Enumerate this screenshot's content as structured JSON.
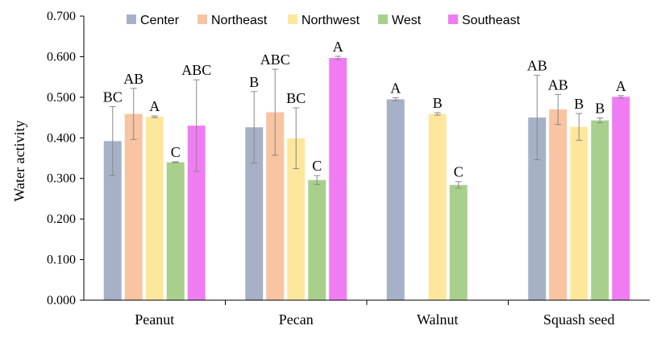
{
  "chart_data": {
    "type": "bar",
    "title": "",
    "xlabel": "",
    "ylabel": "Water activity",
    "ylim": [
      0,
      0.7
    ],
    "yticks": [
      "0.000",
      "0.100",
      "0.200",
      "0.300",
      "0.400",
      "0.500",
      "0.600",
      "0.700"
    ],
    "grid": false,
    "legend_position": "top",
    "categories": [
      "Peanut",
      "Pecan",
      "Walnut",
      "Squash seed"
    ],
    "series": [
      {
        "name": "Center",
        "color": "#a6b1c8",
        "values": [
          0.392,
          0.426,
          0.495,
          0.45
        ],
        "errors": [
          0.085,
          0.088,
          0.004,
          0.104
        ],
        "letters": [
          "BC",
          "B",
          "A",
          "AB"
        ]
      },
      {
        "name": "Northeast",
        "color": "#f9c4a2",
        "values": [
          0.459,
          0.463,
          null,
          0.47
        ],
        "errors": [
          0.063,
          0.106,
          null,
          0.037
        ],
        "letters": [
          "AB",
          "ABC",
          null,
          "AB"
        ]
      },
      {
        "name": "Northwest",
        "color": "#fde79c",
        "values": [
          0.452,
          0.399,
          0.459,
          0.427
        ],
        "errors": [
          0.002,
          0.075,
          0.003,
          0.033
        ],
        "letters": [
          "A",
          "BC",
          "B",
          "B"
        ]
      },
      {
        "name": "West",
        "color": "#a8d08c",
        "values": [
          0.34,
          0.296,
          0.284,
          0.443
        ],
        "errors": [
          0.001,
          0.011,
          0.008,
          0.006
        ],
        "letters": [
          "C",
          "C",
          "C",
          "B"
        ]
      },
      {
        "name": "Southeast",
        "color": "#f07cf4",
        "values": [
          0.43,
          0.597,
          null,
          0.501
        ],
        "errors": [
          0.113,
          0.004,
          null,
          0.003
        ],
        "letters": [
          "ABC",
          "A",
          null,
          "A"
        ]
      }
    ]
  }
}
